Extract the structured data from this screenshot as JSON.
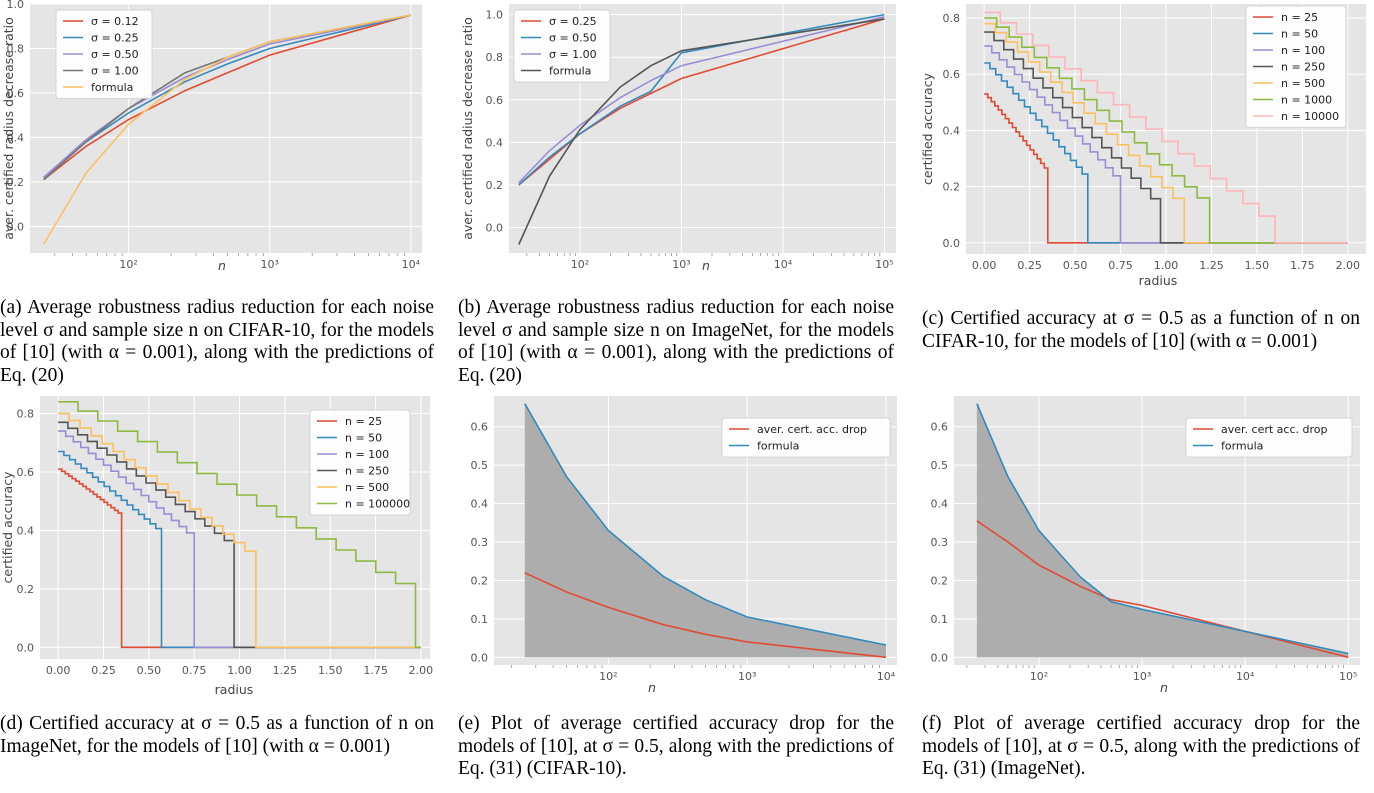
{
  "captions": [
    "(a) Average robustness radius reduction for each noise level σ and sample size n on CIFAR-10, for the models of [10] (with α = 0.001), along with the predictions of Eq. (20)",
    "(b) Average robustness radius reduction for each noise level σ and sample size n on ImageNet, for the models of [10] (with α = 0.001), along with the predictions of Eq. (20)",
    "(c) Certified accuracy at σ = 0.5 as a function of n on CIFAR-10, for the models of [10] (with α = 0.001)",
    "(d) Certified accuracy at σ = 0.5 as a function of n on ImageNet, for the models of [10] (with α = 0.001)",
    "(e) Plot of average certified accuracy drop for the models of [10], at σ = 0.5, along with the predictions of Eq. (31) (CIFAR-10).",
    "(f) Plot of average certified accuracy drop for the models of [10], at σ = 0.5, along with the predictions of Eq. (31) (ImageNet)."
  ],
  "chart_data": [
    {
      "type": "line",
      "xscale": "log",
      "xlim": [
        20,
        12000
      ],
      "ylim": [
        -0.12,
        1.0
      ],
      "xlabel": "n",
      "ylabel": "aver. certified radius decrease ratio",
      "xticks": [
        "10²",
        "10³",
        "10⁴"
      ],
      "yticks": [
        "0.0",
        "0.2",
        "0.4",
        "0.6",
        "0.8",
        "1.0"
      ],
      "legend": "upper left",
      "series": [
        {
          "name": "σ = 0.12",
          "color": "#e24a33",
          "x": [
            25,
            50,
            100,
            250,
            500,
            1000,
            10000
          ],
          "y": [
            0.21,
            0.36,
            0.48,
            0.61,
            0.69,
            0.77,
            0.95
          ]
        },
        {
          "name": "σ = 0.25",
          "color": "#348abd",
          "x": [
            25,
            50,
            100,
            250,
            500,
            1000,
            10000
          ],
          "y": [
            0.22,
            0.38,
            0.51,
            0.65,
            0.73,
            0.8,
            0.95
          ]
        },
        {
          "name": "σ = 0.50",
          "color": "#988ed5",
          "x": [
            25,
            50,
            100,
            250,
            500,
            1000,
            10000
          ],
          "y": [
            0.22,
            0.39,
            0.53,
            0.67,
            0.75,
            0.82,
            0.95
          ]
        },
        {
          "name": "σ = 1.00",
          "color": "#777777",
          "x": [
            25,
            50,
            100,
            250,
            500,
            1000,
            10000
          ],
          "y": [
            0.21,
            0.38,
            0.53,
            0.69,
            0.76,
            0.83,
            0.95
          ]
        },
        {
          "name": "formula",
          "color": "#fbc15e",
          "x": [
            25,
            50,
            100,
            250,
            500,
            1000,
            10000
          ],
          "y": [
            -0.08,
            0.24,
            0.46,
            0.66,
            0.76,
            0.83,
            0.95
          ]
        }
      ]
    },
    {
      "type": "line",
      "xscale": "log",
      "xlim": [
        20,
        130000
      ],
      "ylim": [
        -0.12,
        1.05
      ],
      "xlabel": "n",
      "ylabel": "aver. certified radius decrease ratio",
      "xticks": [
        "10²",
        "10³",
        "10⁴",
        "10⁵"
      ],
      "yticks": [
        "0.0",
        "0.2",
        "0.4",
        "0.6",
        "0.8",
        "1.0"
      ],
      "legend": "upper left",
      "series": [
        {
          "name": "σ = 0.25",
          "color": "#e24a33",
          "x": [
            25,
            50,
            100,
            250,
            500,
            1000,
            100000
          ],
          "y": [
            0.2,
            0.32,
            0.44,
            0.56,
            0.63,
            0.7,
            0.98
          ]
        },
        {
          "name": "σ = 0.50",
          "color": "#348abd",
          "x": [
            25,
            50,
            100,
            250,
            500,
            1000,
            100000
          ],
          "y": [
            0.2,
            0.33,
            0.44,
            0.57,
            0.64,
            0.82,
            1.0
          ]
        },
        {
          "name": "σ = 1.00",
          "color": "#988ed5",
          "x": [
            25,
            50,
            100,
            250,
            500,
            1000,
            100000
          ],
          "y": [
            0.21,
            0.36,
            0.48,
            0.61,
            0.69,
            0.76,
            0.99
          ]
        },
        {
          "name": "formula",
          "color": "#555555",
          "x": [
            25,
            50,
            100,
            250,
            500,
            1000,
            100000
          ],
          "y": [
            -0.08,
            0.24,
            0.46,
            0.66,
            0.76,
            0.83,
            0.98
          ]
        }
      ]
    },
    {
      "type": "line",
      "step": true,
      "xlim": [
        -0.1,
        2.1
      ],
      "ylim": [
        -0.04,
        0.85
      ],
      "xlabel": "radius",
      "ylabel": "certified accuracy",
      "xticks": [
        "0.00",
        "0.25",
        "0.50",
        "0.75",
        "1.00",
        "1.25",
        "1.50",
        "1.75",
        "2.00"
      ],
      "yticks": [
        "0.0",
        "0.2",
        "0.4",
        "0.6",
        "0.8"
      ],
      "legend": "upper right",
      "series": [
        {
          "name": "n = 25",
          "color": "#e24a33",
          "start": 0.53,
          "end": 0.35,
          "mid": 0.28,
          "tail": 0.25
        },
        {
          "name": "n = 50",
          "color": "#348abd",
          "start": 0.64,
          "end": 0.57,
          "mid": 0.32,
          "tail": 0.22
        },
        {
          "name": "n = 100",
          "color": "#988ed5",
          "start": 0.7,
          "end": 0.75,
          "mid": 0.4,
          "tail": 0.21
        },
        {
          "name": "n = 250",
          "color": "#555555",
          "start": 0.75,
          "end": 0.97,
          "mid": 0.5,
          "tail": 0.12
        },
        {
          "name": "n = 500",
          "color": "#fbc15e",
          "start": 0.78,
          "end": 1.1,
          "mid": 0.55,
          "tail": 0.12
        },
        {
          "name": "n = 1000",
          "color": "#8eba42",
          "start": 0.8,
          "end": 1.24,
          "mid": 0.6,
          "tail": 0.12
        },
        {
          "name": "n = 10000",
          "color": "#ffb5b8",
          "start": 0.82,
          "end": 1.6,
          "mid": 0.75,
          "tail": 0.05
        }
      ]
    },
    {
      "type": "line",
      "step": true,
      "xlim": [
        -0.1,
        2.05
      ],
      "ylim": [
        -0.04,
        0.86
      ],
      "xlabel": "radius",
      "ylabel": "certified accuracy",
      "xticks": [
        "0.00",
        "0.25",
        "0.50",
        "0.75",
        "1.00",
        "1.25",
        "1.50",
        "1.75",
        "2.00"
      ],
      "yticks": [
        "0.0",
        "0.2",
        "0.4",
        "0.6",
        "0.8"
      ],
      "legend": "upper right",
      "series": [
        {
          "name": "n = 25",
          "color": "#e24a33",
          "start": 0.61,
          "end": 0.35,
          "mid": 0.25,
          "tail": 0.45
        },
        {
          "name": "n = 50",
          "color": "#348abd",
          "start": 0.67,
          "end": 0.57,
          "mid": 0.35,
          "tail": 0.39
        },
        {
          "name": "n = 100",
          "color": "#988ed5",
          "start": 0.74,
          "end": 0.75,
          "mid": 0.45,
          "tail": 0.37
        },
        {
          "name": "n = 250",
          "color": "#555555",
          "start": 0.77,
          "end": 0.97,
          "mid": 0.55,
          "tail": 0.34
        },
        {
          "name": "n = 500",
          "color": "#fbc15e",
          "start": 0.8,
          "end": 1.09,
          "mid": 0.6,
          "tail": 0.3
        },
        {
          "name": "n = 100000",
          "color": "#8eba42",
          "start": 0.84,
          "end": 1.97,
          "mid": 1.4,
          "tail": 0.18
        }
      ]
    },
    {
      "type": "area",
      "xscale": "log",
      "xlim": [
        15,
        12000
      ],
      "ylim": [
        -0.02,
        0.68
      ],
      "xlabel": "n",
      "ylabel": "",
      "xticks": [
        "10²",
        "10³",
        "10⁴"
      ],
      "yticks": [
        "0.0",
        "0.1",
        "0.2",
        "0.3",
        "0.4",
        "0.5",
        "0.6"
      ],
      "legend": "upper right",
      "series": [
        {
          "name": "aver. cert. acc. drop",
          "color": "#e24a33",
          "x": [
            25,
            50,
            100,
            250,
            500,
            1000,
            10000
          ],
          "y": [
            0.22,
            0.17,
            0.13,
            0.085,
            0.06,
            0.04,
            0.0
          ]
        },
        {
          "name": "formula",
          "color": "#348abd",
          "x": [
            25,
            50,
            100,
            250,
            500,
            1000,
            10000
          ],
          "y": [
            0.66,
            0.47,
            0.33,
            0.21,
            0.15,
            0.105,
            0.032
          ]
        }
      ]
    },
    {
      "type": "area",
      "xscale": "log",
      "xlim": [
        15,
        130000
      ],
      "ylim": [
        -0.02,
        0.68
      ],
      "xlabel": "n",
      "ylabel": "",
      "xticks": [
        "10²",
        "10³",
        "10⁴",
        "10⁵"
      ],
      "yticks": [
        "0.0",
        "0.1",
        "0.2",
        "0.3",
        "0.4",
        "0.5",
        "0.6"
      ],
      "legend": "upper right",
      "series": [
        {
          "name": "aver. cert acc. drop",
          "color": "#e24a33",
          "x": [
            25,
            50,
            100,
            250,
            500,
            1000,
            100000
          ],
          "y": [
            0.355,
            0.3,
            0.24,
            0.185,
            0.15,
            0.135,
            0.0
          ]
        },
        {
          "name": "formula",
          "color": "#348abd",
          "x": [
            25,
            50,
            100,
            250,
            500,
            1000,
            100000
          ],
          "y": [
            0.66,
            0.47,
            0.33,
            0.21,
            0.145,
            0.125,
            0.01
          ]
        }
      ]
    }
  ]
}
